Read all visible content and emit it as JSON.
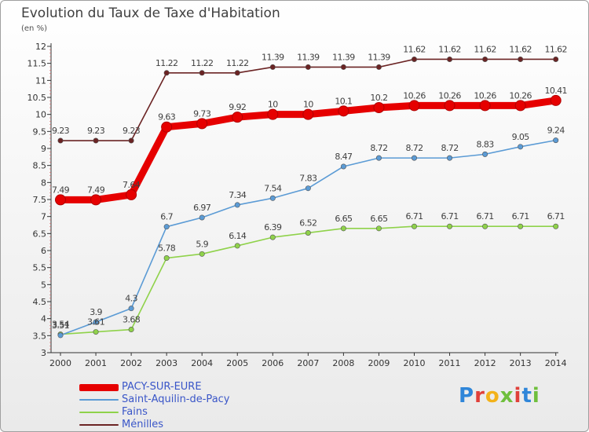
{
  "title": "Evolution du Taux de Taxe d'Habitation",
  "subtitle": "(en %)",
  "logo": {
    "text": "Proxiti",
    "letters": [
      {
        "ch": "P",
        "color": "#2f86d9"
      },
      {
        "ch": "r",
        "color": "#e0403a"
      },
      {
        "ch": "o",
        "color": "#f3b21a"
      },
      {
        "ch": "x",
        "color": "#6fbf3c"
      },
      {
        "ch": "i",
        "color": "#e0403a"
      },
      {
        "ch": "t",
        "color": "#2f86d9"
      },
      {
        "ch": "i",
        "color": "#6fbf3c"
      }
    ]
  },
  "chart_data": {
    "type": "line",
    "title": "Evolution du Taux de Taxe d'Habitation",
    "ylabel": "(en %)",
    "x": [
      2000,
      2001,
      2002,
      2003,
      2004,
      2005,
      2006,
      2007,
      2008,
      2009,
      2010,
      2011,
      2012,
      2013,
      2014
    ],
    "ylim": [
      3,
      12
    ],
    "yticks": [
      "3",
      "3.5",
      "4",
      "4.5",
      "5",
      "5.5",
      "6",
      "6.5",
      "7",
      "7.5",
      "8",
      "8.5",
      "9",
      "9.5",
      "10",
      "10.5",
      "11",
      "11.5",
      "12"
    ],
    "grid": false,
    "legend": "bottom-left",
    "series": [
      {
        "name": "Ménilles",
        "color": "#6b2424",
        "values": [
          9.23,
          9.23,
          9.23,
          11.22,
          11.22,
          11.22,
          11.39,
          11.39,
          11.39,
          11.39,
          11.62,
          11.62,
          11.62,
          11.62,
          11.62
        ],
        "labels": [
          "9.23",
          "9.23",
          "9.23",
          "11.22",
          "11.22",
          "11.22",
          "11.39",
          "11.39",
          "11.39",
          "11.39",
          "11.62",
          "11.62",
          "11.62",
          "11.62",
          "11.62"
        ]
      },
      {
        "name": "Fains",
        "color": "#8fd24a",
        "values": [
          3.54,
          3.61,
          3.68,
          5.78,
          5.9,
          6.14,
          6.39,
          6.52,
          6.65,
          6.65,
          6.71,
          6.71,
          6.71,
          6.71,
          6.71
        ],
        "labels": [
          "3.54",
          "3.61",
          "3.68",
          "5.78",
          "5.9",
          "6.14",
          "6.39",
          "6.52",
          "6.65",
          "6.65",
          "6.71",
          "6.71",
          "6.71",
          "6.71",
          "6.71"
        ]
      },
      {
        "name": "Saint-Aquilin-de-Pacy",
        "color": "#5b9bd5",
        "values": [
          3.51,
          3.9,
          4.3,
          6.7,
          6.97,
          7.34,
          7.54,
          7.83,
          8.47,
          8.72,
          8.72,
          8.72,
          8.83,
          9.05,
          9.24
        ],
        "labels": [
          "3.51",
          "3.9",
          "4.3",
          "6.7",
          "6.97",
          "7.34",
          "7.54",
          "7.83",
          "8.47",
          "8.72",
          "8.72",
          "8.72",
          "8.83",
          "9.05",
          "9.24"
        ]
      },
      {
        "name": "PACY-SUR-EURE",
        "color": "#e60000",
        "values": [
          7.49,
          7.49,
          7.64,
          9.63,
          9.73,
          9.92,
          10,
          10,
          10.1,
          10.2,
          10.26,
          10.26,
          10.26,
          10.26,
          10.41
        ],
        "labels": [
          "7.49",
          "7.49",
          "7.64",
          "9.63",
          "9.73",
          "9.92",
          "10",
          "10",
          "10.1",
          "10.2",
          "10.26",
          "10.26",
          "10.26",
          "10.26",
          "10.41"
        ]
      }
    ],
    "legend_entries": [
      {
        "name": "PACY-SUR-EURE",
        "color": "#e60000",
        "thickness": 9
      },
      {
        "name": "Saint-Aquilin-de-Pacy",
        "color": "#5b9bd5",
        "thickness": 2
      },
      {
        "name": "Fains",
        "color": "#8fd24a",
        "thickness": 2
      },
      {
        "name": "Ménilles",
        "color": "#6b2424",
        "thickness": 2
      }
    ]
  }
}
